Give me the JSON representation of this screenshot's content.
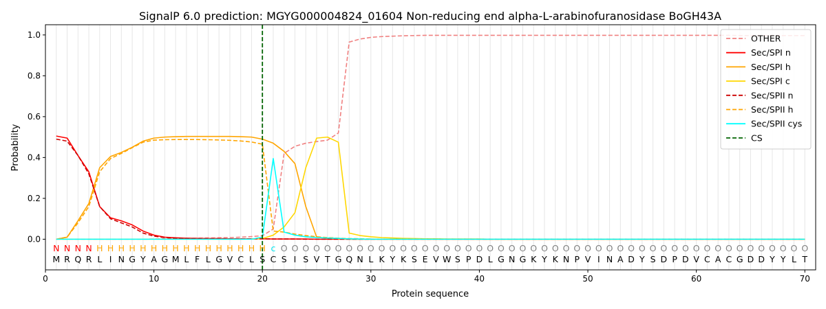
{
  "chart_data": {
    "type": "line",
    "title": "SignalP 6.0 prediction: MGYG000004824_01604 Non-reducing end alpha-L-arabinofuranosidase BoGH43A",
    "xlabel": "Protein sequence",
    "ylabel": "Probability",
    "xlim": [
      0,
      71
    ],
    "ylim": [
      -0.15,
      1.05
    ],
    "x_ticks": [
      0,
      10,
      20,
      30,
      40,
      50,
      60,
      70
    ],
    "y_ticks": [
      0.0,
      0.2,
      0.4,
      0.6,
      0.8,
      1.0
    ],
    "grid": "vertical lines at each residue",
    "legend_position": "top-right",
    "sequence": [
      "M",
      "R",
      "Q",
      "R",
      "L",
      "I",
      "N",
      "G",
      "Y",
      "A",
      "G",
      "M",
      "L",
      "F",
      "L",
      "G",
      "V",
      "C",
      "L",
      "S",
      "C",
      "S",
      "I",
      "S",
      "V",
      "T",
      "G",
      "Q",
      "N",
      "L",
      "K",
      "Y",
      "K",
      "S",
      "E",
      "V",
      "W",
      "S",
      "P",
      "D",
      "L",
      "G",
      "N",
      "G",
      "K",
      "Y",
      "K",
      "N",
      "P",
      "V",
      "I",
      "N",
      "A",
      "D",
      "Y",
      "S",
      "D",
      "P",
      "D",
      "V",
      "C",
      "A",
      "C",
      "G",
      "D",
      "D",
      "Y",
      "Y",
      "L",
      "T"
    ],
    "labels": [
      "N",
      "N",
      "N",
      "N",
      "H",
      "H",
      "H",
      "H",
      "H",
      "H",
      "H",
      "H",
      "H",
      "H",
      "H",
      "H",
      "H",
      "H",
      "H",
      "H",
      "c",
      "O",
      "O",
      "O",
      "O",
      "O",
      "O",
      "O",
      "O",
      "O",
      "O",
      "O",
      "O",
      "O",
      "O",
      "O",
      "O",
      "O",
      "O",
      "O",
      "O",
      "O",
      "O",
      "O",
      "O",
      "O",
      "O",
      "O",
      "O",
      "O",
      "O",
      "O",
      "O",
      "O",
      "O",
      "O",
      "O",
      "O",
      "O",
      "O",
      "O",
      "O",
      "O",
      "O",
      "O",
      "O",
      "O",
      "O",
      "O",
      "O"
    ],
    "label_colors": {
      "N": "#ff0000",
      "H": "#ffa500",
      "c": "#00e5ee",
      "O": "#808080"
    },
    "cleavage_site": 20,
    "series": [
      {
        "name": "OTHER",
        "color": "#f08080",
        "dash": "dashed",
        "values": [
          0.0,
          0.0,
          0.0,
          0.0,
          0.0,
          0.0,
          0.0,
          0.0,
          0.0,
          0.001,
          0.002,
          0.003,
          0.004,
          0.005,
          0.006,
          0.007,
          0.008,
          0.01,
          0.013,
          0.017,
          0.05,
          0.42,
          0.455,
          0.47,
          0.478,
          0.485,
          0.52,
          0.965,
          0.98,
          0.988,
          0.992,
          0.994,
          0.996,
          0.997,
          0.998,
          0.998,
          0.998,
          0.998,
          0.998,
          0.998,
          0.998,
          0.998,
          0.998,
          0.998,
          0.998,
          0.998,
          0.998,
          0.998,
          0.998,
          0.998,
          0.998,
          0.998,
          0.998,
          0.998,
          0.998,
          0.998,
          0.998,
          0.998,
          0.998,
          0.998,
          0.998,
          0.998,
          0.998,
          0.997,
          0.997,
          0.997,
          0.997,
          0.997,
          0.997,
          0.997
        ]
      },
      {
        "name": "Sec/SPI n",
        "color": "#ff0000",
        "dash": "solid",
        "values": [
          0.505,
          0.495,
          0.41,
          0.33,
          0.16,
          0.105,
          0.09,
          0.07,
          0.04,
          0.02,
          0.01,
          0.007,
          0.005,
          0.004,
          0.003,
          0.003,
          0.002,
          0.002,
          0.002,
          0.002,
          0.001,
          0.001,
          0.001,
          0.001,
          0.0,
          0.0,
          0.0,
          0.0,
          0.0,
          0.0,
          0.0,
          0.0,
          0.0,
          0.0,
          0.0,
          0.0,
          0.0,
          0.0,
          0.0,
          0.0,
          0.0,
          0.0,
          0.0,
          0.0,
          0.0,
          0.0,
          0.0,
          0.0,
          0.0,
          0.0,
          0.0,
          0.0,
          0.0,
          0.0,
          0.0,
          0.0,
          0.0,
          0.0,
          0.0,
          0.0,
          0.0,
          0.0,
          0.0,
          0.0,
          0.0,
          0.0,
          0.0,
          0.0,
          0.0,
          0.0
        ]
      },
      {
        "name": "Sec/SPI h",
        "color": "#ffa500",
        "dash": "solid",
        "values": [
          0.0,
          0.01,
          0.09,
          0.175,
          0.35,
          0.405,
          0.425,
          0.45,
          0.48,
          0.495,
          0.5,
          0.502,
          0.503,
          0.503,
          0.503,
          0.503,
          0.503,
          0.502,
          0.5,
          0.49,
          0.47,
          0.43,
          0.37,
          0.16,
          0.01,
          0.005,
          0.002,
          0.0,
          0.0,
          0.0,
          0.0,
          0.0,
          0.0,
          0.0,
          0.0,
          0.0,
          0.0,
          0.0,
          0.0,
          0.0,
          0.0,
          0.0,
          0.0,
          0.0,
          0.0,
          0.0,
          0.0,
          0.0,
          0.0,
          0.0,
          0.0,
          0.0,
          0.0,
          0.0,
          0.0,
          0.0,
          0.0,
          0.0,
          0.0,
          0.0,
          0.0,
          0.0,
          0.0,
          0.0,
          0.0,
          0.0,
          0.0,
          0.0,
          0.0,
          0.0
        ]
      },
      {
        "name": "Sec/SPI c",
        "color": "#ffd700",
        "dash": "solid",
        "values": [
          0.0,
          0.0,
          0.0,
          0.0,
          0.0,
          0.0,
          0.0,
          0.0,
          0.0,
          0.0,
          0.0,
          0.0,
          0.0,
          0.0,
          0.0,
          0.0,
          0.0,
          0.0,
          0.001,
          0.003,
          0.02,
          0.06,
          0.13,
          0.35,
          0.495,
          0.5,
          0.475,
          0.03,
          0.018,
          0.012,
          0.008,
          0.006,
          0.004,
          0.003,
          0.002,
          0.002,
          0.001,
          0.001,
          0.001,
          0.001,
          0.0,
          0.0,
          0.0,
          0.0,
          0.0,
          0.0,
          0.0,
          0.0,
          0.0,
          0.0,
          0.0,
          0.0,
          0.0,
          0.0,
          0.0,
          0.0,
          0.0,
          0.0,
          0.0,
          0.0,
          0.0,
          0.0,
          0.0,
          0.0,
          0.0,
          0.0,
          0.0,
          0.0,
          0.0,
          0.0
        ]
      },
      {
        "name": "Sec/SPII n",
        "color": "#cc0000",
        "dash": "dashed",
        "values": [
          0.49,
          0.48,
          0.41,
          0.32,
          0.16,
          0.1,
          0.08,
          0.06,
          0.03,
          0.015,
          0.008,
          0.005,
          0.004,
          0.003,
          0.003,
          0.002,
          0.002,
          0.002,
          0.002,
          0.002,
          0.001,
          0.001,
          0.001,
          0.0,
          0.0,
          0.0,
          0.0,
          0.0,
          0.0,
          0.0,
          0.0,
          0.0,
          0.0,
          0.0,
          0.0,
          0.0,
          0.0,
          0.0,
          0.0,
          0.0,
          0.0,
          0.0,
          0.0,
          0.0,
          0.0,
          0.0,
          0.0,
          0.0,
          0.0,
          0.0,
          0.0,
          0.0,
          0.0,
          0.0,
          0.0,
          0.0,
          0.0,
          0.0,
          0.0,
          0.0,
          0.0,
          0.0,
          0.0,
          0.0,
          0.0,
          0.0,
          0.0,
          0.0,
          0.0,
          0.0
        ]
      },
      {
        "name": "Sec/SPII h",
        "color": "#ffa500",
        "dash": "dashed",
        "values": [
          0.0,
          0.01,
          0.08,
          0.16,
          0.33,
          0.395,
          0.42,
          0.448,
          0.475,
          0.485,
          0.487,
          0.488,
          0.488,
          0.488,
          0.487,
          0.486,
          0.484,
          0.481,
          0.476,
          0.465,
          0.04,
          0.035,
          0.025,
          0.018,
          0.012,
          0.008,
          0.005,
          0.003,
          0.002,
          0.001,
          0.0,
          0.0,
          0.0,
          0.0,
          0.0,
          0.0,
          0.0,
          0.0,
          0.0,
          0.0,
          0.0,
          0.0,
          0.0,
          0.0,
          0.0,
          0.0,
          0.0,
          0.0,
          0.0,
          0.0,
          0.0,
          0.0,
          0.0,
          0.0,
          0.0,
          0.0,
          0.0,
          0.0,
          0.0,
          0.0,
          0.0,
          0.0,
          0.0,
          0.0,
          0.0,
          0.0,
          0.0,
          0.0,
          0.0,
          0.0
        ]
      },
      {
        "name": "Sec/SPII cys",
        "color": "#00ffff",
        "dash": "solid",
        "values": [
          0.0,
          0.0,
          0.0,
          0.0,
          0.0,
          0.0,
          0.0,
          0.0,
          0.0,
          0.0,
          0.0,
          0.0,
          0.0,
          0.0,
          0.0,
          0.0,
          0.0,
          0.0,
          0.0,
          0.01,
          0.395,
          0.035,
          0.02,
          0.012,
          0.008,
          0.006,
          0.004,
          0.002,
          0.001,
          0.0,
          0.0,
          0.0,
          0.0,
          0.0,
          0.0,
          0.0,
          0.0,
          0.0,
          0.0,
          0.0,
          0.0,
          0.0,
          0.0,
          0.0,
          0.0,
          0.0,
          0.0,
          0.0,
          0.0,
          0.0,
          0.0,
          0.0,
          0.0,
          0.0,
          0.0,
          0.0,
          0.0,
          0.0,
          0.0,
          0.0,
          0.0,
          0.0,
          0.0,
          0.0,
          0.0,
          0.0,
          0.0,
          0.0,
          0.0,
          0.0
        ]
      }
    ],
    "legend": [
      {
        "name": "OTHER",
        "color": "#f08080",
        "dash": "dashed"
      },
      {
        "name": "Sec/SPI n",
        "color": "#ff0000",
        "dash": "solid"
      },
      {
        "name": "Sec/SPI h",
        "color": "#ffa500",
        "dash": "solid"
      },
      {
        "name": "Sec/SPI c",
        "color": "#ffd700",
        "dash": "solid"
      },
      {
        "name": "Sec/SPII n",
        "color": "#cc0000",
        "dash": "dashed"
      },
      {
        "name": "Sec/SPII h",
        "color": "#ffa500",
        "dash": "dashed"
      },
      {
        "name": "Sec/SPII cys",
        "color": "#00ffff",
        "dash": "solid"
      },
      {
        "name": "CS",
        "color": "#006400",
        "dash": "dashed"
      }
    ]
  }
}
